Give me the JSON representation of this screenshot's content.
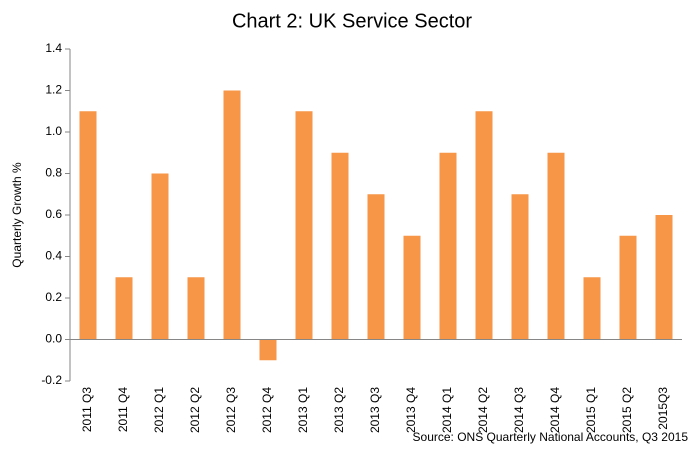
{
  "chart_data": {
    "type": "bar",
    "title": "Chart 2: UK Service Sector",
    "y_label": "Quarterly  Growth %",
    "source": "Source: ONS Quarterly National Accounts, Q3 2015",
    "categories": [
      "2011 Q3",
      "2011 Q4",
      "2012 Q1",
      "2012 Q2",
      "2012 Q3",
      "2012 Q4",
      "2013 Q1",
      "2013 Q2",
      "2013 Q3",
      "2013 Q4",
      "2014 Q1",
      "2014 Q2",
      "2014 Q3",
      "2014 Q4",
      "2015 Q1",
      "2015 Q2",
      "2015Q3"
    ],
    "values": [
      1.1,
      0.3,
      0.8,
      0.3,
      1.2,
      -0.1,
      1.1,
      0.9,
      0.7,
      0.5,
      0.9,
      1.1,
      0.7,
      0.9,
      0.3,
      0.5,
      0.6
    ],
    "color": "#f79646",
    "ylim": [
      -0.2,
      1.4
    ],
    "yticks": [
      -0.2,
      {
        "value": 0,
        "label": "0.0"
      },
      0.2,
      0.4,
      0.6,
      0.8,
      {
        "value": 1,
        "label": "1.0"
      },
      1.2,
      1.4
    ],
    "grid": false
  }
}
